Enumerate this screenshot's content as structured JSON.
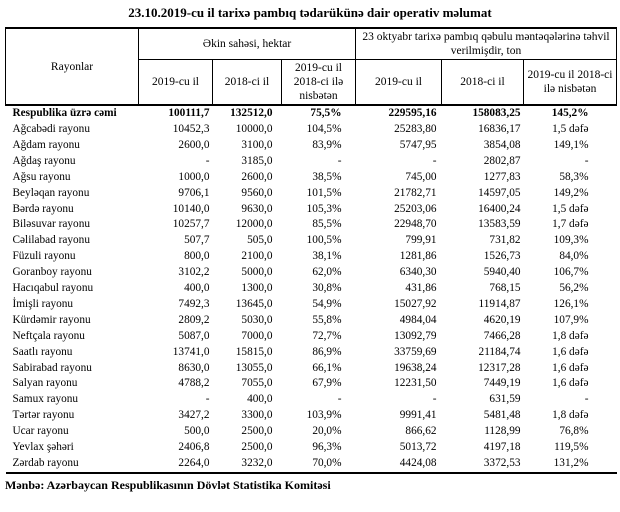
{
  "title": "23.10.2019-cu il tarixə pambıq tədarükünə dair operativ məlumat",
  "table": {
    "header": {
      "rayonlar": "Rayonlar",
      "group1": "Əkin sahəsi, hektar",
      "group2": "23 oktyabr tarixə pambıq qəbulu məntəqələrinə təhvil verilmişdir, ton",
      "subheaders": [
        "2019-cu il",
        "2018-ci il",
        "2019-cu il 2018-ci ilə nisbətən",
        "2019-cu il",
        "2018-ci il",
        "2019-cu il 2018-ci ilə nisbətən"
      ]
    },
    "rows": [
      {
        "label": "Respublika üzrə cəmi",
        "values": [
          "100111,7",
          "132512,0",
          "75,5%",
          "229595,16",
          "158083,25",
          "145,2%"
        ],
        "emphasis": true
      },
      {
        "label": "Ağcabədi rayonu",
        "values": [
          "10452,3",
          "10000,0",
          "104,5%",
          "25283,80",
          "16836,17",
          "1,5 dəfə"
        ],
        "emphasis": false
      },
      {
        "label": "Ağdam rayonu",
        "values": [
          "2600,0",
          "3100,0",
          "83,9%",
          "5747,95",
          "3854,08",
          "149,1%"
        ],
        "emphasis": false
      },
      {
        "label": "Ağdaş rayonu",
        "values": [
          "-",
          "3185,0",
          "-",
          "-",
          "2802,87",
          "-"
        ],
        "emphasis": false
      },
      {
        "label": "Ağsu rayonu",
        "values": [
          "1000,0",
          "2600,0",
          "38,5%",
          "745,00",
          "1277,83",
          "58,3%"
        ],
        "emphasis": false
      },
      {
        "label": "Beyləqan rayonu",
        "values": [
          "9706,1",
          "9560,0",
          "101,5%",
          "21782,71",
          "14597,05",
          "149,2%"
        ],
        "emphasis": false
      },
      {
        "label": "Bərdə rayonu",
        "values": [
          "10140,0",
          "9630,0",
          "105,3%",
          "25203,06",
          "16400,24",
          "1,5 dəfə"
        ],
        "emphasis": false
      },
      {
        "label": "Biləsuvar rayonu",
        "values": [
          "10257,7",
          "12000,0",
          "85,5%",
          "22948,70",
          "13583,59",
          "1,7 dəfə"
        ],
        "emphasis": false
      },
      {
        "label": "Cəlilabad rayonu",
        "values": [
          "507,7",
          "505,0",
          "100,5%",
          "799,91",
          "731,82",
          "109,3%"
        ],
        "emphasis": false
      },
      {
        "label": "Füzuli rayonu",
        "values": [
          "800,0",
          "2100,0",
          "38,1%",
          "1281,86",
          "1526,73",
          "84,0%"
        ],
        "emphasis": false
      },
      {
        "label": "Goranboy rayonu",
        "values": [
          "3102,2",
          "5000,0",
          "62,0%",
          "6340,30",
          "5940,40",
          "106,7%"
        ],
        "emphasis": false
      },
      {
        "label": "Hacıqabul rayonu",
        "values": [
          "400,0",
          "1300,0",
          "30,8%",
          "431,86",
          "768,15",
          "56,2%"
        ],
        "emphasis": false
      },
      {
        "label": "İmişli rayonu",
        "values": [
          "7492,3",
          "13645,0",
          "54,9%",
          "15027,92",
          "11914,87",
          "126,1%"
        ],
        "emphasis": false
      },
      {
        "label": "Kürdəmir rayonu",
        "values": [
          "2809,2",
          "5030,0",
          "55,8%",
          "4984,04",
          "4620,19",
          "107,9%"
        ],
        "emphasis": false
      },
      {
        "label": "Neftçala rayonu",
        "values": [
          "5087,0",
          "7000,0",
          "72,7%",
          "13092,79",
          "7466,28",
          "1,8 dəfə"
        ],
        "emphasis": false
      },
      {
        "label": "Saatlı rayonu",
        "values": [
          "13741,0",
          "15815,0",
          "86,9%",
          "33759,69",
          "21184,74",
          "1,6 dəfə"
        ],
        "emphasis": false
      },
      {
        "label": "Sabirabad rayonu",
        "values": [
          "8630,0",
          "13055,0",
          "66,1%",
          "19638,24",
          "12317,28",
          "1,6 dəfə"
        ],
        "emphasis": false
      },
      {
        "label": "Salyan rayonu",
        "values": [
          "4788,2",
          "7055,0",
          "67,9%",
          "12231,50",
          "7449,19",
          "1,6 dəfə"
        ],
        "emphasis": false
      },
      {
        "label": "Samux rayonu",
        "values": [
          "-",
          "400,0",
          "-",
          "-",
          "631,59",
          "-"
        ],
        "emphasis": false
      },
      {
        "label": "Tərtər rayonu",
        "values": [
          "3427,2",
          "3300,0",
          "103,9%",
          "9991,41",
          "5481,48",
          "1,8 dəfə"
        ],
        "emphasis": false
      },
      {
        "label": "Ucar rayonu",
        "values": [
          "500,0",
          "2500,0",
          "20,0%",
          "866,62",
          "1128,99",
          "76,8%"
        ],
        "emphasis": false
      },
      {
        "label": "Yevlax şəhəri",
        "values": [
          "2406,8",
          "2500,0",
          "96,3%",
          "5013,72",
          "4197,18",
          "119,5%"
        ],
        "emphasis": false
      },
      {
        "label": "Zərdab rayonu",
        "values": [
          "2264,0",
          "3232,0",
          "70,0%",
          "4424,08",
          "3372,53",
          "131,2%"
        ],
        "emphasis": false
      }
    ]
  },
  "source": "Mənbə: Azərbaycan Respublikasının Dövlət Statistika Komitəsi"
}
